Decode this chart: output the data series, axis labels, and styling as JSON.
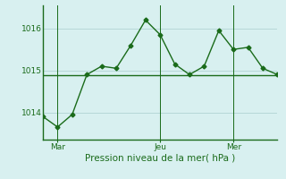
{
  "x_values": [
    0,
    1,
    2,
    3,
    4,
    5,
    6,
    7,
    8,
    9,
    10,
    11,
    12,
    13,
    14,
    15,
    16
  ],
  "y_line": [
    1013.9,
    1013.65,
    1013.95,
    1014.9,
    1015.1,
    1015.05,
    1015.6,
    1016.2,
    1015.85,
    1015.15,
    1014.9,
    1015.1,
    1015.95,
    1015.5,
    1015.55,
    1015.05,
    1014.9
  ],
  "y_flat": [
    1014.88,
    1014.88,
    1014.88,
    1014.88,
    1014.88,
    1014.88,
    1014.88,
    1014.88,
    1014.88,
    1014.88,
    1014.88,
    1014.88,
    1014.88,
    1014.88,
    1014.88,
    1014.88,
    1014.88
  ],
  "xtick_positions": [
    1,
    8,
    13
  ],
  "xtick_labels": [
    "Mar",
    "Jeu",
    "Mer"
  ],
  "vline_positions": [
    1,
    8,
    13
  ],
  "ylim": [
    1013.35,
    1016.55
  ],
  "yticks": [
    1014,
    1015,
    1016
  ],
  "line_color": "#1a6b1a",
  "flat_color": "#1a6b1a",
  "bg_color": "#d8f0f0",
  "grid_color": "#aacece",
  "xlabel": "Pression niveau de la mer( hPa )",
  "xlabel_color": "#1a6b1a",
  "tick_color": "#1a6b1a",
  "marker": "D",
  "marker_size": 2.5,
  "line_width": 1.0
}
